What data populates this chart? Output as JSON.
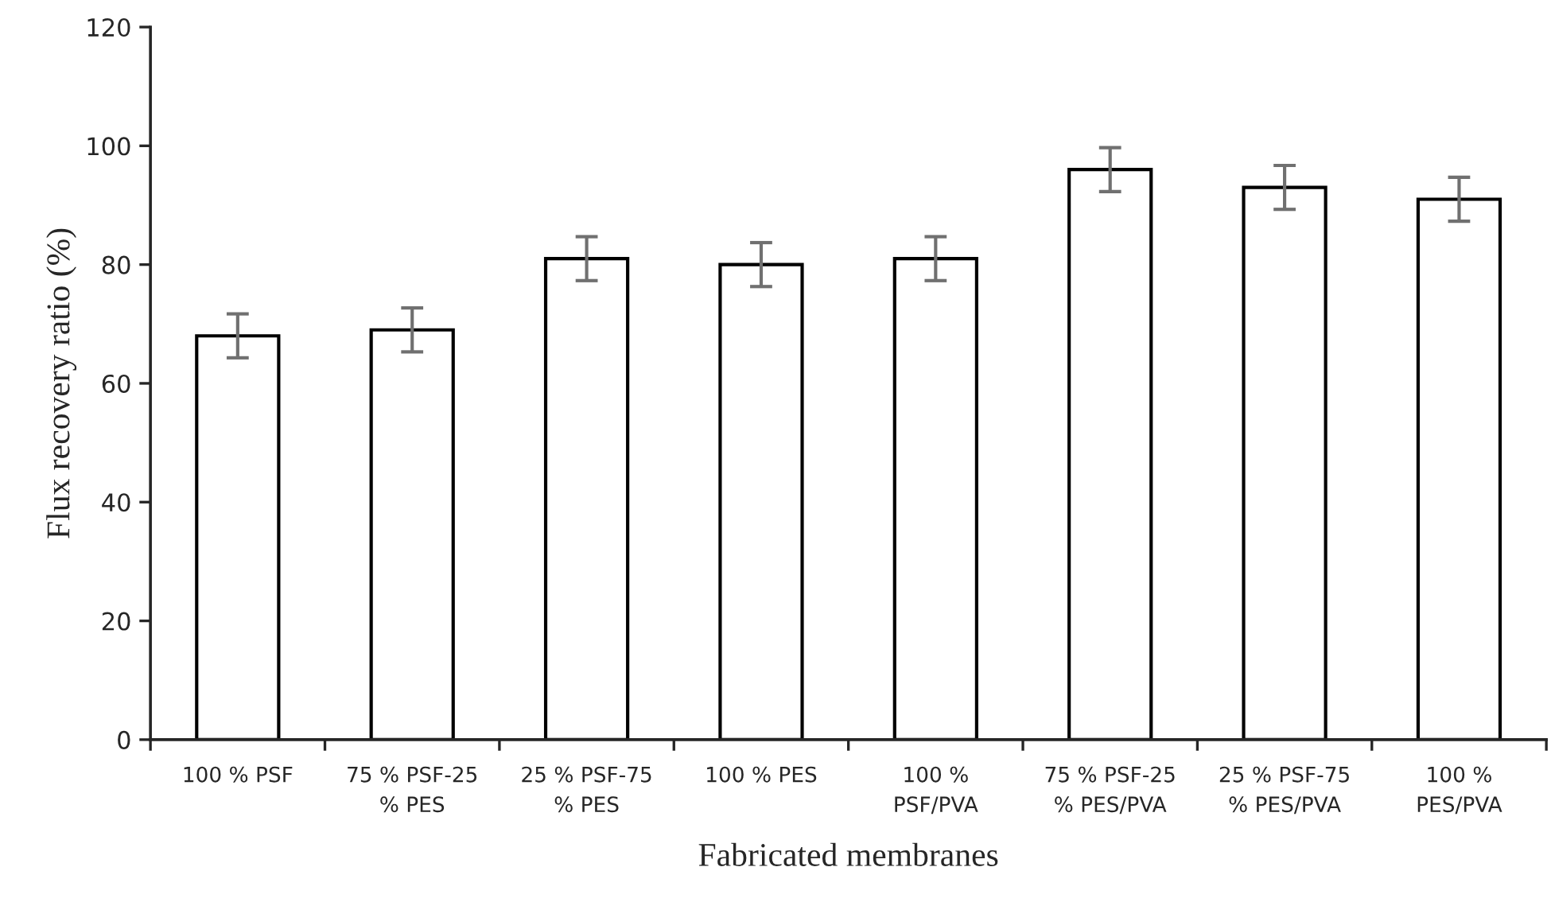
{
  "chart_data": {
    "type": "bar",
    "xlabel": "Fabricated membranes",
    "ylabel": "Flux recovery ratio (%)",
    "categories": [
      "100 % PSF",
      "75 % PSF-25\n% PES",
      "25 % PSF-75\n% PES",
      "100 % PES",
      "100 %\nPSF/PVA",
      "75 % PSF-25\n% PES/PVA",
      "25 % PSF-75\n% PES/PVA",
      "100 %\nPES/PVA"
    ],
    "values": [
      68,
      69,
      81,
      80,
      81,
      96,
      93,
      91
    ],
    "errors": [
      3.7,
      3.7,
      3.7,
      3.7,
      3.7,
      3.7,
      3.7,
      3.7
    ],
    "color": "#ffffff",
    "ylim": [
      0,
      120
    ],
    "yticks": [
      0,
      20,
      40,
      60,
      80,
      100,
      120
    ],
    "grid": false
  }
}
